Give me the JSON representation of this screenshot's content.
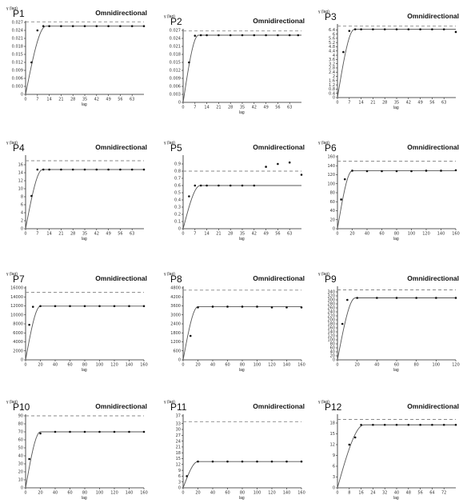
{
  "chart_data": [
    {
      "type": "scatter",
      "title": "P1",
      "mode": "Omnidirectional",
      "ylabel": "γ (lag)",
      "xlabel": "lag",
      "ylim": [
        0,
        0.027
      ],
      "xlim": [
        0,
        70
      ],
      "xticks": [
        "0",
        "7",
        "14",
        "21",
        "28",
        "35",
        "42",
        "49",
        "56",
        "63"
      ],
      "yticks": [
        "0",
        "0.003",
        "0.006",
        "0.009",
        "0.012",
        "0.015",
        "0.018",
        "0.021",
        "0.024",
        "0.027"
      ],
      "x": [
        3.5,
        7,
        10.5,
        14,
        21,
        28,
        35,
        42,
        49,
        56,
        63,
        70
      ],
      "y": [
        0.012,
        0.024,
        0.0256,
        0.0256,
        0.0256,
        0.0256,
        0.0256,
        0.0256,
        0.0256,
        0.0256,
        0.0256,
        0.0256
      ],
      "sill": 0.0256,
      "range": 12,
      "variance": 0.0272
    },
    {
      "type": "scatter",
      "title": "P2",
      "mode": "Omnidirectional",
      "ylabel": "γ (lag)",
      "xlabel": "lag",
      "ylim": [
        0,
        0.027
      ],
      "xlim": [
        0,
        70
      ],
      "xticks": [
        "0",
        "7",
        "14",
        "21",
        "28",
        "35",
        "42",
        "49",
        "56",
        "63"
      ],
      "yticks": [
        "0",
        "0.003",
        "0.006",
        "0.009",
        "0.012",
        "0.015",
        "0.018",
        "0.021",
        "0.024",
        "0.027"
      ],
      "x": [
        3.5,
        7,
        10.5,
        14,
        21,
        28,
        35,
        42,
        49,
        56,
        63,
        68
      ],
      "y": [
        0.015,
        0.025,
        0.0252,
        0.0252,
        0.0252,
        0.0252,
        0.0252,
        0.0252,
        0.0252,
        0.0252,
        0.0252,
        0.0252
      ],
      "sill": 0.0252,
      "range": 9,
      "variance": 0.0268
    },
    {
      "type": "scatter",
      "title": "P3",
      "mode": "Omnidirectional",
      "ylabel": "γ (lag)",
      "xlabel": "lag",
      "ylim": [
        0,
        6.8
      ],
      "xlim": [
        0,
        70
      ],
      "xticks": [
        "0",
        "7",
        "14",
        "21",
        "28",
        "35",
        "42",
        "49",
        "56",
        "63"
      ],
      "yticks": [
        "0",
        "0.4",
        "0.8",
        "1.2",
        "1.6",
        "2",
        "2.4",
        "2.8",
        "3.2",
        "3.6",
        "4",
        "4.4",
        "4.8",
        "5.2",
        "5.6",
        "6",
        "6.4"
      ],
      "x": [
        3.5,
        7,
        10.5,
        14,
        21,
        28,
        35,
        42,
        49,
        56,
        63,
        70
      ],
      "y": [
        4.3,
        6.3,
        6.45,
        6.45,
        6.45,
        6.45,
        6.45,
        6.45,
        6.45,
        6.45,
        6.45,
        6.2
      ],
      "sill": 6.45,
      "range": 10,
      "variance": 6.75
    },
    {
      "type": "scatter",
      "title": "P4",
      "mode": "Omnidirectional",
      "ylabel": "γ (lag)",
      "xlabel": "lag",
      "ylim": [
        0,
        18
      ],
      "xlim": [
        0,
        70
      ],
      "xticks": [
        "0",
        "7",
        "14",
        "21",
        "28",
        "35",
        "42",
        "49",
        "56",
        "63"
      ],
      "yticks": [
        "0",
        "2",
        "4",
        "6",
        "8",
        "10",
        "12",
        "14",
        "16"
      ],
      "x": [
        3.5,
        7,
        10.5,
        14,
        21,
        28,
        35,
        42,
        49,
        56,
        63,
        70
      ],
      "y": [
        8.2,
        14.8,
        14.8,
        14.8,
        14.8,
        14.8,
        14.8,
        14.8,
        14.8,
        14.8,
        14.8,
        14.8
      ],
      "sill": 14.8,
      "range": 10,
      "variance": 17
    },
    {
      "type": "scatter",
      "title": "P5",
      "mode": "Omnidirectional",
      "ylabel": "γ (lag)",
      "xlabel": "lag",
      "ylim": [
        0,
        1
      ],
      "xlim": [
        0,
        70
      ],
      "xticks": [
        "0",
        "7",
        "14",
        "21",
        "28",
        "35",
        "42",
        "49",
        "56",
        "63"
      ],
      "yticks": [
        "0",
        "0.1",
        "0.2",
        "0.3",
        "0.4",
        "0.5",
        "0.6",
        "0.7",
        "0.8",
        "0.9"
      ],
      "x": [
        3.5,
        7,
        10.5,
        14,
        21,
        28,
        35,
        42,
        49,
        56,
        63,
        70
      ],
      "y": [
        0.45,
        0.6,
        0.6,
        0.6,
        0.6,
        0.6,
        0.6,
        0.6,
        0.86,
        0.9,
        0.92,
        0.75
      ],
      "sill": 0.6,
      "range": 10,
      "variance": 0.8
    },
    {
      "type": "scatter",
      "title": "P6",
      "mode": "Omnidirectional",
      "ylabel": "γ (lag)",
      "xlabel": "lag",
      "ylim": [
        0,
        160
      ],
      "xlim": [
        0,
        160
      ],
      "xticks": [
        "0",
        "20",
        "40",
        "60",
        "80",
        "100",
        "120",
        "140",
        "160"
      ],
      "yticks": [
        "0",
        "20",
        "40",
        "60",
        "80",
        "100",
        "120",
        "140",
        "160"
      ],
      "x": [
        5,
        10,
        20,
        40,
        60,
        80,
        100,
        120,
        140,
        160
      ],
      "y": [
        65,
        110,
        129,
        128,
        128,
        128,
        128,
        129,
        129,
        130
      ],
      "sill": 129,
      "range": 20,
      "variance": 150
    },
    {
      "type": "scatter",
      "title": "P7",
      "mode": "Omnidirectional",
      "ylabel": "γ (lag)",
      "xlabel": "lag",
      "ylim": [
        0,
        16000
      ],
      "xlim": [
        0,
        160
      ],
      "xticks": [
        "0",
        "20",
        "40",
        "60",
        "80",
        "100",
        "120",
        "140",
        "160"
      ],
      "yticks": [
        "0",
        "2000",
        "4000",
        "6000",
        "8000",
        "10000",
        "12000",
        "14000",
        "16000"
      ],
      "x": [
        5,
        10,
        20,
        40,
        60,
        80,
        100,
        120,
        140,
        160
      ],
      "y": [
        7800,
        11800,
        11950,
        11950,
        11950,
        11950,
        11950,
        11950,
        11950,
        11950
      ],
      "sill": 11950,
      "range": 20,
      "variance": 15000
    },
    {
      "type": "scatter",
      "title": "P8",
      "mode": "Omnidirectional",
      "ylabel": "γ (lag)",
      "xlabel": "lag",
      "ylim": [
        0,
        4800
      ],
      "xlim": [
        0,
        160
      ],
      "xticks": [
        "0",
        "20",
        "40",
        "60",
        "80",
        "100",
        "120",
        "140",
        "160"
      ],
      "yticks": [
        "0",
        "600",
        "1200",
        "1800",
        "2400",
        "3000",
        "3600",
        "4200",
        "4800"
      ],
      "x": [
        10,
        20,
        40,
        60,
        80,
        100,
        120,
        140,
        160
      ],
      "y": [
        1600,
        3500,
        3550,
        3550,
        3550,
        3550,
        3500,
        3500,
        3500
      ],
      "sill": 3550,
      "range": 20,
      "variance": 4650
    },
    {
      "type": "scatter",
      "title": "P9",
      "mode": "Omnidirectional",
      "ylabel": "γ (lag)",
      "xlabel": "lag",
      "ylim": [
        0,
        360
      ],
      "xlim": [
        0,
        120
      ],
      "xticks": [
        "0",
        "20",
        "40",
        "60",
        "80",
        "100",
        "120"
      ],
      "yticks": [
        "0",
        "20",
        "40",
        "60",
        "80",
        "100",
        "120",
        "140",
        "160",
        "180",
        "200",
        "220",
        "240",
        "260",
        "280",
        "300",
        "320",
        "340"
      ],
      "x": [
        5,
        10,
        20,
        40,
        60,
        80,
        100,
        120
      ],
      "y": [
        180,
        300,
        310,
        310,
        310,
        310,
        310,
        310
      ],
      "sill": 310,
      "range": 18,
      "variance": 350
    },
    {
      "type": "scatter",
      "title": "P10",
      "mode": "Omnidirectional",
      "ylabel": "γ (lag)",
      "xlabel": "lag",
      "ylim": [
        0,
        90
      ],
      "xlim": [
        0,
        160
      ],
      "xticks": [
        "0",
        "20",
        "40",
        "60",
        "80",
        "100",
        "120",
        "140",
        "160"
      ],
      "yticks": [
        "0",
        "10",
        "20",
        "30",
        "40",
        "50",
        "60",
        "70",
        "80",
        "90"
      ],
      "x": [
        5,
        20,
        40,
        60,
        80,
        100,
        120,
        140,
        160
      ],
      "y": [
        36,
        68,
        70,
        70,
        70,
        70,
        70,
        70,
        70
      ],
      "sill": 70,
      "range": 20,
      "variance": 90
    },
    {
      "type": "scatter",
      "title": "P11",
      "mode": "Omnidirectional",
      "ylabel": "γ (lag)",
      "xlabel": "lag",
      "ylim": [
        0,
        37
      ],
      "xlim": [
        0,
        160
      ],
      "xticks": [
        "0",
        "20",
        "40",
        "60",
        "80",
        "100",
        "120",
        "140",
        "160"
      ],
      "yticks": [
        "0",
        "3",
        "6",
        "9",
        "12",
        "15",
        "18",
        "21",
        "24",
        "27",
        "30",
        "33",
        "37"
      ],
      "x": [
        5,
        20,
        40,
        60,
        80,
        100,
        120,
        140,
        160
      ],
      "y": [
        6,
        13.5,
        13.5,
        13.5,
        13.5,
        13.5,
        13.5,
        13.5,
        13.5
      ],
      "sill": 13.5,
      "range": 20,
      "variance": 34
    },
    {
      "type": "scatter",
      "title": "P12",
      "mode": "Omnidirectional",
      "ylabel": "γ (lag)",
      "xlabel": "lag",
      "ylim": [
        0,
        20
      ],
      "xlim": [
        0,
        80
      ],
      "xticks": [
        "0",
        "8",
        "16",
        "24",
        "32",
        "40",
        "48",
        "56",
        "64",
        "72"
      ],
      "yticks": [
        "0",
        "3",
        "6",
        "9",
        "12",
        "15",
        "18"
      ],
      "x": [
        8,
        12,
        16,
        24,
        32,
        40,
        48,
        56,
        64,
        72,
        80
      ],
      "y": [
        12,
        14,
        17.5,
        17.5,
        17.5,
        17.5,
        17.5,
        17.5,
        17.5,
        17.5,
        17.5
      ],
      "sill": 17.5,
      "range": 18,
      "variance": 19
    }
  ]
}
